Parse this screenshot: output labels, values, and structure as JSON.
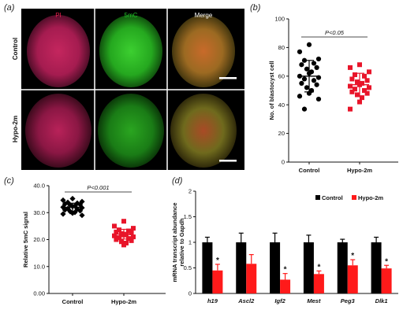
{
  "panels": {
    "a": {
      "label": "(a)",
      "col_titles": [
        "PI",
        "5mC",
        "Merge"
      ],
      "col_title_colors": [
        "#e8214e",
        "#22c02a",
        "#ffffff"
      ],
      "row_labels": [
        "Control",
        "Hypo-2m"
      ]
    },
    "b": {
      "label": "(b)"
    },
    "c": {
      "label": "(c)"
    },
    "d": {
      "label": "(d)"
    }
  },
  "chart_data": [
    {
      "id": "b",
      "type": "scatter",
      "ylabel": "No. of blastocyst cell",
      "ylim": [
        0,
        100
      ],
      "yticks": [
        0,
        20,
        40,
        60,
        80,
        100
      ],
      "categories": [
        "Control",
        "Hypo-2m"
      ],
      "significance": "P<0.05",
      "series": [
        {
          "category": "Control",
          "marker": "circle",
          "color": "#000000",
          "mean": 60,
          "sd": 11,
          "values": [
            82,
            77,
            72,
            71,
            69,
            68,
            66,
            65,
            63,
            62,
            60,
            59,
            58,
            57,
            55,
            54,
            52,
            50,
            48,
            46,
            44,
            37
          ]
        },
        {
          "category": "Hypo-2m",
          "marker": "square",
          "color": "#e8152a",
          "mean": 54,
          "sd": 8,
          "values": [
            68,
            66,
            63,
            61,
            60,
            58,
            57,
            56,
            55,
            54,
            53,
            52,
            51,
            50,
            49,
            48,
            47,
            45,
            42,
            37
          ]
        }
      ]
    },
    {
      "id": "c",
      "type": "scatter",
      "ylabel": "Relative 5mC signal",
      "ylim": [
        0,
        40
      ],
      "yticks": [
        "0.00",
        "10.0",
        "20.0",
        "30.0",
        "40.0"
      ],
      "categories": [
        "Control",
        "Hypo-2m"
      ],
      "significance": "P<0.001",
      "series": [
        {
          "category": "Control",
          "marker": "diamond",
          "color": "#000000",
          "mean": 32,
          "sd": 1.5,
          "values": [
            35.2,
            34.6,
            34.1,
            33.8,
            33.5,
            33.2,
            33.0,
            32.8,
            32.5,
            32.3,
            32.0,
            31.8,
            31.5,
            31.3,
            31.0,
            30.7,
            30.4,
            30.1,
            29.8,
            29.5,
            29.0
          ]
        },
        {
          "category": "Hypo-2m",
          "marker": "square",
          "color": "#e8152a",
          "mean": 22,
          "sd": 1.8,
          "values": [
            26.8,
            25.0,
            24.2,
            23.6,
            23.2,
            22.8,
            22.5,
            22.2,
            22.0,
            21.7,
            21.4,
            21.0,
            20.7,
            20.4,
            20.0,
            19.6,
            19.2,
            18.7,
            18.0
          ]
        }
      ]
    },
    {
      "id": "d",
      "type": "bar",
      "ylabel": [
        "mRNA transcript abundance",
        "relative to Gapdh"
      ],
      "ylim": [
        0,
        2
      ],
      "yticks": [
        "0",
        "0.5",
        "1",
        "1.5",
        "2"
      ],
      "categories": [
        "h19",
        "Ascl2",
        "Igf2",
        "Mest",
        "Peg3",
        "Dlk1"
      ],
      "series": [
        {
          "name": "Control",
          "color": "#000000",
          "values": [
            1,
            1,
            1,
            1,
            1,
            1
          ],
          "errors": [
            0.1,
            0.18,
            0.18,
            0.14,
            0.06,
            0.1
          ]
        },
        {
          "name": "Hypo-2m",
          "color": "#ff1a1a",
          "values": [
            0.45,
            0.58,
            0.27,
            0.38,
            0.55,
            0.49
          ],
          "errors": [
            0.12,
            0.18,
            0.12,
            0.06,
            0.11,
            0.06
          ]
        }
      ],
      "significant": [
        true,
        false,
        true,
        true,
        true,
        true
      ],
      "star": "*"
    }
  ]
}
